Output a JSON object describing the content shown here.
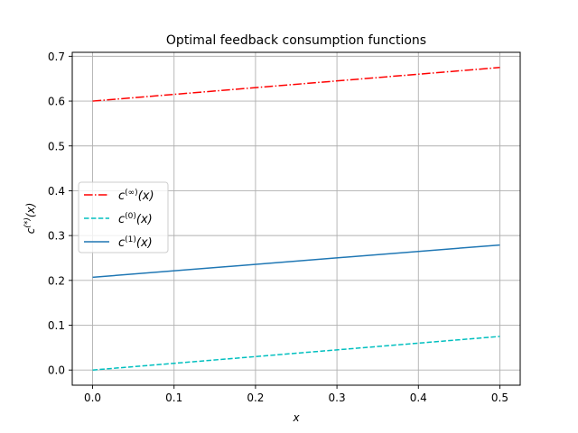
{
  "chart_data": {
    "type": "line",
    "title": "Optimal feedback consumption functions",
    "xlabel": "x",
    "ylabel": "c^(*)(x)",
    "xlim": [
      -0.025,
      0.525
    ],
    "ylim": [
      -0.0338,
      0.7088
    ],
    "x_ticks": [
      0.0,
      0.1,
      0.2,
      0.3,
      0.4,
      0.5
    ],
    "x_tick_labels": [
      "0.0",
      "0.1",
      "0.2",
      "0.3",
      "0.4",
      "0.5"
    ],
    "y_ticks": [
      0.0,
      0.1,
      0.2,
      0.3,
      0.4,
      0.5,
      0.6,
      0.7
    ],
    "y_tick_labels": [
      "0.0",
      "0.1",
      "0.2",
      "0.3",
      "0.4",
      "0.5",
      "0.6",
      "0.7"
    ],
    "grid": true,
    "legend_position": "center-left",
    "series": [
      {
        "name": "c^(∞)(x)",
        "label_base": "c",
        "label_sup": "(∞)",
        "label_tail": "(x)",
        "color": "#ff0000",
        "style": "dashdot",
        "x": [
          0.0,
          0.5
        ],
        "y": [
          0.6,
          0.675
        ]
      },
      {
        "name": "c^(0)(x)",
        "label_base": "c",
        "label_sup": "(0)",
        "label_tail": "(x)",
        "color": "#00bfbf",
        "style": "dashed",
        "x": [
          0.0,
          0.5
        ],
        "y": [
          0.0,
          0.075
        ]
      },
      {
        "name": "c^(1)(x)",
        "label_base": "c",
        "label_sup": "(1)",
        "label_tail": "(x)",
        "color": "#1f77b4",
        "style": "solid",
        "x": [
          0.0,
          0.5
        ],
        "y": [
          0.207,
          0.279
        ]
      }
    ]
  }
}
